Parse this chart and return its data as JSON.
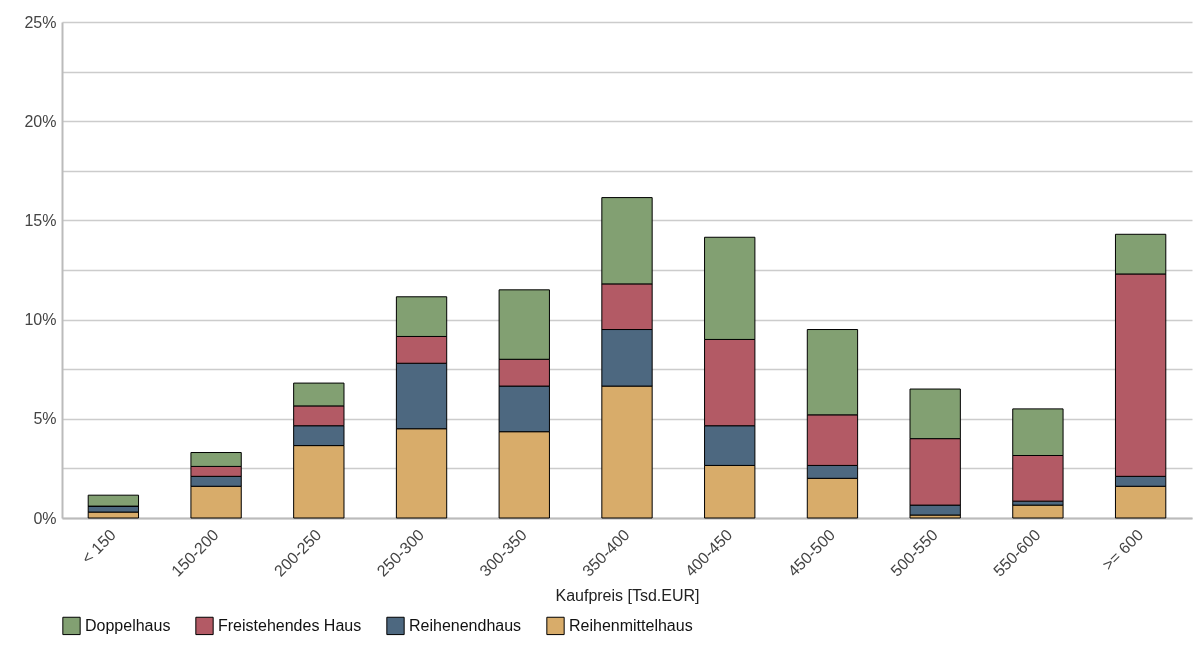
{
  "chart_data": {
    "type": "bar",
    "stacked": true,
    "xlabel": "Kaufpreis [Tsd.EUR]",
    "categories": [
      "< 150",
      "150-200",
      "200-250",
      "250-300",
      "300-350",
      "350-400",
      "400-450",
      "450-500",
      "500-550",
      "550-600",
      ">= 600"
    ],
    "series": [
      {
        "name": "Reihenmittelhaus",
        "color": "#d8ac6a",
        "values": [
          0.3,
          1.6,
          3.65,
          4.5,
          4.35,
          6.65,
          2.65,
          2.0,
          0.15,
          0.65,
          1.6
        ]
      },
      {
        "name": "Reihenendhaus",
        "color": "#4d6880",
        "values": [
          0.3,
          0.5,
          1.0,
          3.3,
          2.3,
          2.85,
          2.0,
          0.65,
          0.5,
          0.2,
          0.5
        ]
      },
      {
        "name": "Freistehendes Haus",
        "color": "#b35a65",
        "values": [
          0,
          0.5,
          1.0,
          1.35,
          1.35,
          2.3,
          4.35,
          2.55,
          3.35,
          2.3,
          10.2
        ]
      },
      {
        "name": "Doppelhaus",
        "color": "#82a072",
        "values": [
          0.55,
          0.7,
          1.15,
          2.0,
          3.5,
          4.35,
          5.15,
          4.3,
          2.5,
          2.35,
          2.0
        ]
      }
    ],
    "ylim": [
      0,
      25
    ],
    "yticks": [
      {
        "value": 0,
        "label": "0%"
      },
      {
        "value": 2.5,
        "label": null
      },
      {
        "value": 5,
        "label": "5%"
      },
      {
        "value": 7.5,
        "label": null
      },
      {
        "value": 10,
        "label": "10%"
      },
      {
        "value": 12.5,
        "label": null
      },
      {
        "value": 15,
        "label": "15%"
      },
      {
        "value": 17.5,
        "label": null
      },
      {
        "value": 20,
        "label": "20%"
      },
      {
        "value": 22.5,
        "label": null
      },
      {
        "value": 25,
        "label": "25%"
      }
    ],
    "grid": "y",
    "legend": "bottom"
  }
}
